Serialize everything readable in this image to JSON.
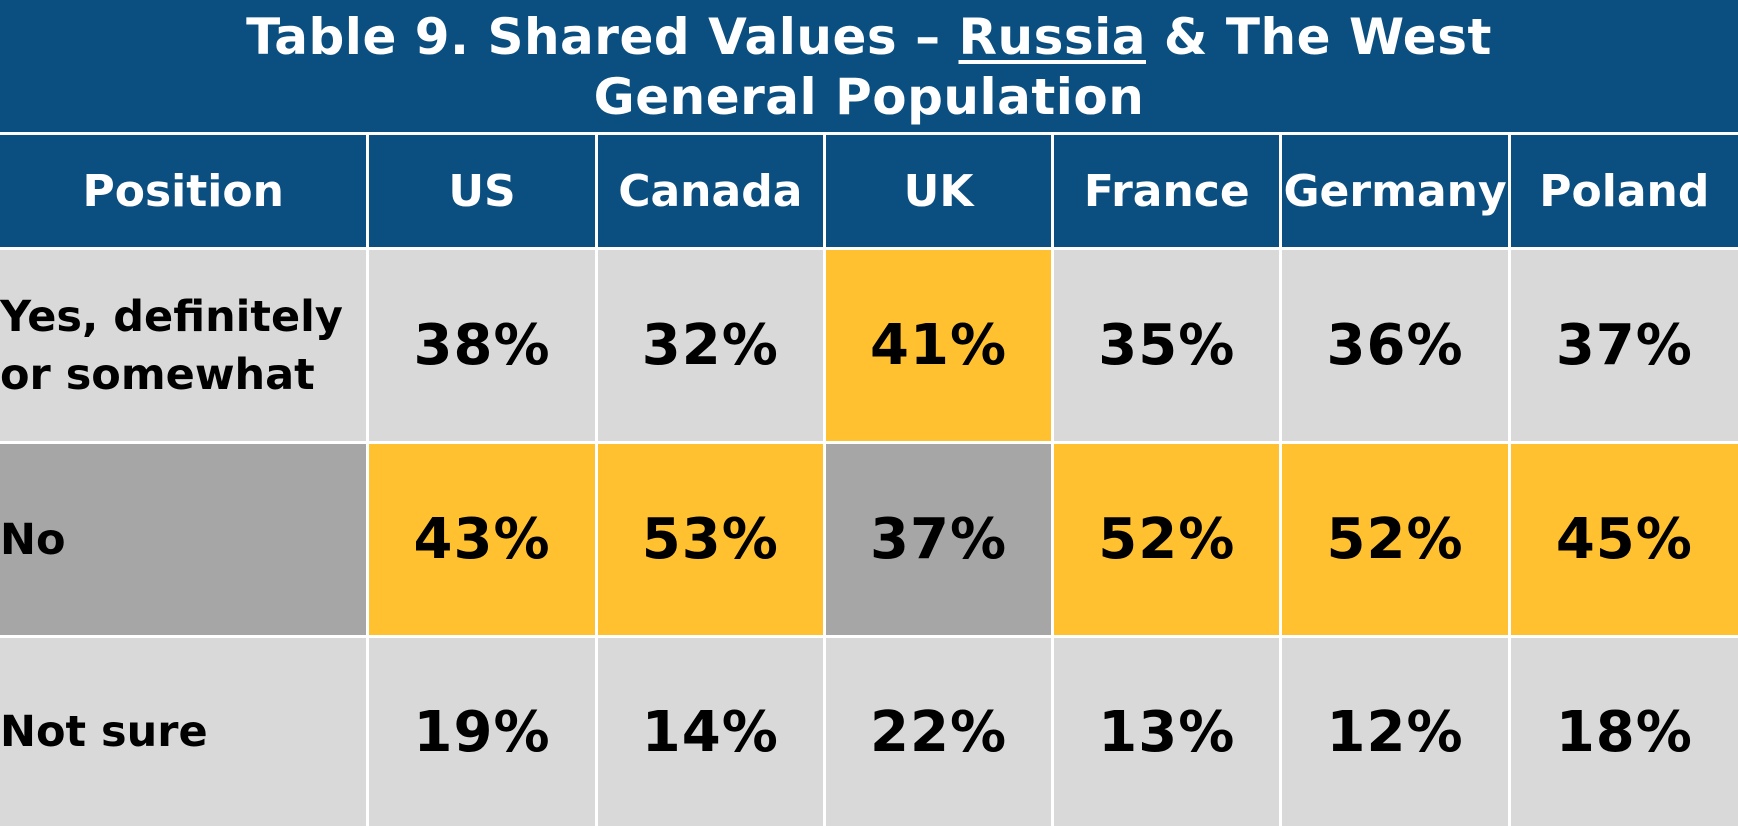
{
  "title": {
    "prefix": "Table 9. Shared Values – ",
    "underlined": "Russia",
    "suffix": " & The West",
    "subtitle": "General Population"
  },
  "colors": {
    "header_bg": "#0B4F80",
    "header_text": "#FFFFFF",
    "cell_light": "#D9D9D9",
    "cell_dark": "#A6A6A6",
    "cell_highlight": "#FFC12F",
    "cell_text": "#000000"
  },
  "chart_data": {
    "type": "table",
    "row_header_label": "Position",
    "columns": [
      "US",
      "Canada",
      "UK",
      "France",
      "Germany",
      "Poland"
    ],
    "rows": [
      {
        "label": "Yes, definitely or somewhat",
        "values": [
          "38%",
          "32%",
          "41%",
          "35%",
          "36%",
          "37%"
        ],
        "label_shade": "light",
        "shades": [
          "light",
          "light",
          "highlight",
          "light",
          "light",
          "light"
        ]
      },
      {
        "label": "No",
        "values": [
          "43%",
          "53%",
          "37%",
          "52%",
          "52%",
          "45%"
        ],
        "label_shade": "dark",
        "shades": [
          "highlight",
          "highlight",
          "dark",
          "highlight",
          "highlight",
          "highlight"
        ]
      },
      {
        "label": "Not sure",
        "values": [
          "19%",
          "14%",
          "22%",
          "13%",
          "12%",
          "18%"
        ],
        "label_shade": "light",
        "shades": [
          "light",
          "light",
          "light",
          "light",
          "light",
          "light"
        ]
      }
    ]
  }
}
